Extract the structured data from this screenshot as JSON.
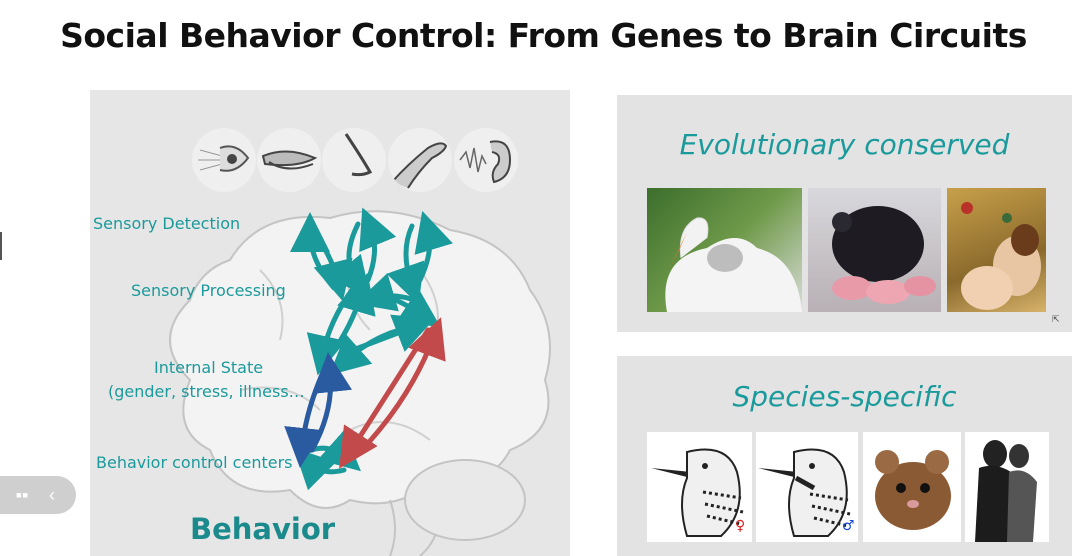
{
  "slide": {
    "title": "Social Behavior Control: From Genes to Brain Circuits",
    "left_panel": {
      "labels": {
        "sensory_detection": "Sensory Detection",
        "sensory_processing": "Sensory Processing",
        "internal_state_1": "Internal State",
        "internal_state_2": "(gender, stress, illness…",
        "behavior_control": "Behavior control centers",
        "behavior": "Behavior"
      },
      "sense_icons": [
        "eye-icon",
        "mouth-icon",
        "nose-icon",
        "hand-icon",
        "ear-icon"
      ]
    },
    "right_top": {
      "title": "Evolutionary conserved"
    },
    "right_bottom": {
      "title": "Species-specific"
    },
    "colors": {
      "teal": "#1b9a9c",
      "blue": "#2a5aa0",
      "red": "#c24a4a"
    }
  }
}
